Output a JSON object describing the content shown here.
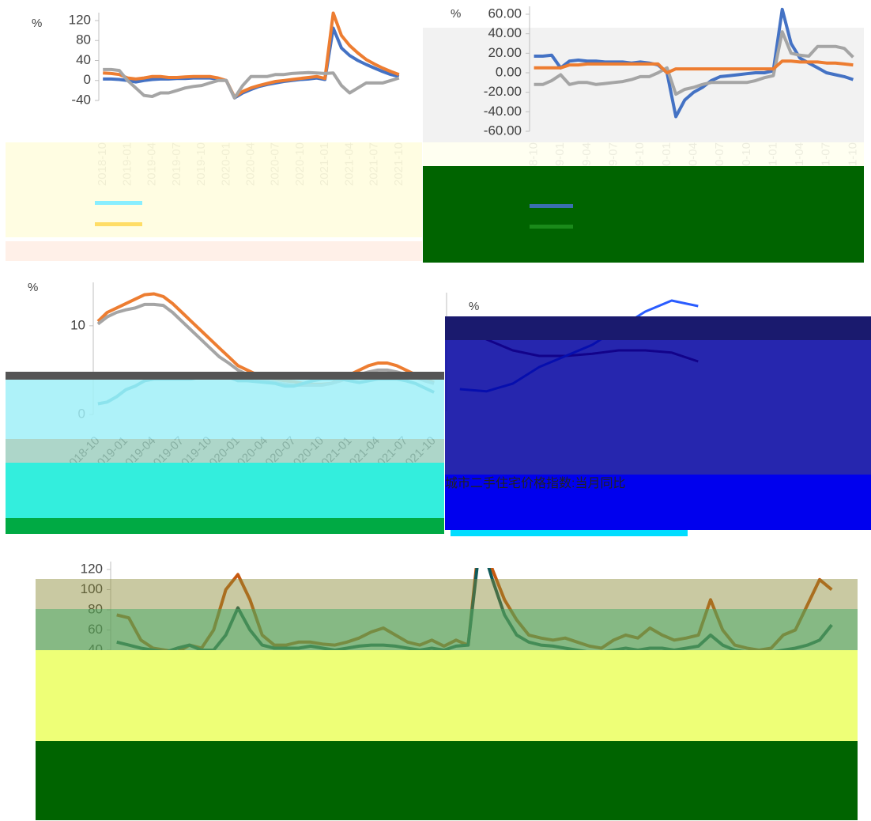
{
  "chart_data": [
    {
      "type": "line",
      "y_label": "%",
      "ylim": [
        -40,
        120
      ],
      "yticks": [
        -40,
        0,
        40,
        80,
        120
      ],
      "categories": [
        "2018-10",
        null,
        null,
        "2019-01",
        null,
        null,
        "2019-04",
        null,
        null,
        "2019-07",
        null,
        null,
        "2019-10",
        null,
        null,
        "2020-01",
        null,
        null,
        "2020-04",
        null,
        null,
        "2020-07",
        null,
        null,
        "2020-10",
        null,
        null,
        "2021-01",
        null,
        null,
        "2021-04",
        null,
        null,
        "2021-07",
        null,
        null,
        "2021-10"
      ],
      "series": [
        {
          "color": "#4472c4",
          "values": [
            3,
            3,
            2,
            0,
            -3,
            0,
            2,
            3,
            3,
            4,
            4,
            5,
            5,
            5,
            3,
            0,
            -35,
            -25,
            -18,
            -12,
            -8,
            -5,
            -2,
            0,
            2,
            3,
            5,
            2,
            105,
            65,
            50,
            40,
            32,
            25,
            18,
            12,
            8
          ]
        },
        {
          "color": "#ed7d31",
          "values": [
            15,
            14,
            12,
            5,
            3,
            5,
            8,
            8,
            6,
            6,
            7,
            8,
            8,
            8,
            5,
            0,
            -33,
            -22,
            -15,
            -10,
            -6,
            -2,
            0,
            2,
            4,
            6,
            8,
            4,
            135,
            90,
            70,
            55,
            42,
            33,
            25,
            18,
            12
          ]
        },
        {
          "color": "#a5a5a5",
          "values": [
            22,
            22,
            20,
            0,
            -15,
            -30,
            -32,
            -25,
            -25,
            -20,
            -15,
            -12,
            -10,
            -5,
            0,
            0,
            -35,
            -10,
            8,
            8,
            8,
            12,
            12,
            14,
            15,
            16,
            15,
            14,
            15,
            -10,
            -25,
            -15,
            -5,
            -5,
            -5,
            0,
            5
          ]
        }
      ]
    },
    {
      "type": "line",
      "y_label": "%",
      "ylim": [
        -60,
        60
      ],
      "yticks": [
        {
          "value": -60,
          "label": "-60.00"
        },
        {
          "value": -40,
          "label": "-40.00"
        },
        {
          "value": -20,
          "label": "-20.00"
        },
        {
          "value": 0,
          "label": "0.00"
        },
        {
          "value": 20,
          "label": "20.00"
        },
        {
          "value": 40,
          "label": "40.00"
        },
        {
          "value": 60,
          "label": "60.00"
        }
      ],
      "categories": [
        "2018-10",
        null,
        null,
        "2019-01",
        null,
        null,
        "2019-04",
        null,
        null,
        "2019-07",
        null,
        null,
        "2019-10",
        null,
        null,
        "2020-01",
        null,
        null,
        "2020-04",
        null,
        null,
        "2020-07",
        null,
        null,
        "2020-10",
        null,
        null,
        "2021-01",
        null,
        null,
        "2021-04",
        null,
        null,
        "2021-07",
        null,
        null,
        "2021-10"
      ],
      "series": [
        {
          "color": "#4472c4",
          "values": [
            17,
            17,
            18,
            5,
            12,
            13,
            12,
            12,
            11,
            11,
            11,
            10,
            11,
            10,
            8,
            0,
            -45,
            -28,
            -20,
            -15,
            -8,
            -4,
            -3,
            -2,
            -1,
            0,
            0,
            2,
            65,
            30,
            15,
            10,
            5,
            0,
            -2,
            -4,
            -7
          ]
        },
        {
          "color": "#a5a5a5",
          "values": [
            -12,
            -12,
            -8,
            -2,
            -12,
            -10,
            -10,
            -12,
            -11,
            -10,
            -9,
            -7,
            -4,
            -4,
            0,
            5,
            -22,
            -17,
            -15,
            -12,
            -10,
            -10,
            -10,
            -10,
            -10,
            -8,
            -5,
            -3,
            42,
            20,
            18,
            17,
            27,
            27,
            27,
            25,
            16
          ]
        },
        {
          "color": "#ed7d31",
          "values": [
            5,
            5,
            5,
            5,
            8,
            8,
            9,
            9,
            9,
            9,
            9,
            9,
            9,
            9,
            9,
            0,
            4,
            4,
            4,
            4,
            4,
            4,
            4,
            4,
            4,
            4,
            4,
            4,
            12,
            12,
            11,
            11,
            11,
            10,
            10,
            9,
            8
          ]
        }
      ]
    },
    {
      "type": "line",
      "y_label": "%",
      "ylim": [
        0,
        14
      ],
      "yticks": [
        0,
        10
      ],
      "categories": [
        "2018-10",
        null,
        null,
        "2019-01",
        null,
        null,
        "2019-04",
        null,
        null,
        "2019-07",
        null,
        null,
        "2019-10",
        null,
        null,
        "2020-01",
        null,
        null,
        "2020-04",
        null,
        null,
        "2020-07",
        null,
        null,
        "2020-10",
        null,
        null,
        "2021-01",
        null,
        null,
        "2021-04",
        null,
        null,
        "2021-07",
        null,
        null,
        "2021-10"
      ],
      "series": [
        {
          "color": "#ed7d31",
          "values": [
            10.5,
            11.5,
            12,
            12.5,
            13,
            13.5,
            13.6,
            13.3,
            12.5,
            11.5,
            10.5,
            9.5,
            8.5,
            7.5,
            6.5,
            5.5,
            5,
            4.5,
            4.2,
            4,
            3.8,
            3.7,
            3.5,
            3.4,
            3.4,
            3.5,
            4,
            4.5,
            5,
            5.5,
            5.8,
            5.8,
            5.5,
            5,
            4.5,
            4,
            3.6
          ]
        },
        {
          "color": "#a5a5a5",
          "values": [
            10.2,
            11,
            11.5,
            11.8,
            12,
            12.4,
            12.4,
            12.3,
            11.5,
            10.5,
            9.5,
            8.5,
            7.5,
            6.5,
            5.8,
            5,
            4.5,
            4,
            3.8,
            3.6,
            3.4,
            3.3,
            3.3,
            3.3,
            3.3,
            3.5,
            3.8,
            4.2,
            4.5,
            4.8,
            5,
            5,
            4.8,
            4.5,
            4.2,
            3.8,
            3.5
          ]
        },
        {
          "color": "#1f9bb0",
          "values": [
            1.2,
            1.4,
            2,
            2.8,
            3.2,
            3.8,
            4,
            4,
            4,
            4,
            4,
            4.2,
            4.4,
            4.5,
            4.2,
            3.8,
            3.8,
            3.7,
            3.6,
            3.5,
            3.2,
            3.2,
            3.5,
            3.8,
            4,
            4,
            4,
            3.8,
            3.6,
            3.8,
            4,
            4,
            4,
            3.8,
            3.5,
            3,
            2.5
          ]
        }
      ]
    },
    {
      "type": "line",
      "title": "城市二手住宅价格指数:当月同比",
      "y_label": "%",
      "ylim": [
        0,
        10
      ],
      "categories": [
        null,
        null,
        null,
        null,
        null,
        null,
        null,
        null,
        null,
        null
      ],
      "series": [
        {
          "color": "#7a1010",
          "values": [
            8,
            6.5,
            5.5,
            5,
            5,
            5.2,
            5.5,
            5.5,
            5.3,
            4.5
          ]
        },
        {
          "color": "#2a5cff",
          "values": [
            2,
            1.8,
            2.5,
            4,
            5,
            6,
            7.5,
            9,
            10,
            9.5
          ]
        }
      ]
    },
    {
      "type": "line",
      "ylim": [
        40,
        120
      ],
      "yticks": [
        40,
        60,
        80,
        100,
        120
      ],
      "categories": [
        null,
        null,
        null,
        null,
        null,
        null,
        null,
        null,
        null,
        null,
        null,
        null,
        null,
        null,
        null,
        null,
        null,
        null,
        null,
        null,
        null,
        null,
        null,
        null,
        null,
        null,
        null,
        null,
        null,
        null,
        null,
        null,
        null,
        null,
        null,
        null,
        null,
        null,
        null,
        null,
        null,
        null,
        null,
        null,
        null,
        null,
        null,
        null,
        null,
        null,
        null,
        null,
        null,
        null,
        null,
        null,
        null,
        null,
        null,
        null
      ],
      "series": [
        {
          "color": "#c65a11",
          "values": [
            75,
            72,
            50,
            42,
            40,
            38,
            45,
            42,
            60,
            100,
            115,
            90,
            55,
            45,
            45,
            48,
            48,
            46,
            45,
            48,
            52,
            58,
            62,
            55,
            48,
            45,
            50,
            44,
            50,
            45,
            160,
            120,
            90,
            70,
            55,
            52,
            50,
            52,
            48,
            44,
            42,
            50,
            55,
            52,
            62,
            55,
            50,
            52,
            55,
            90,
            60,
            45,
            42,
            40,
            42,
            55,
            60,
            85,
            110,
            100
          ]
        },
        {
          "color": "#0f5a5a",
          "values": [
            48,
            45,
            42,
            40,
            38,
            42,
            45,
            40,
            40,
            55,
            82,
            60,
            45,
            42,
            42,
            42,
            44,
            42,
            40,
            42,
            44,
            45,
            45,
            44,
            42,
            40,
            42,
            40,
            44,
            45,
            150,
            110,
            75,
            55,
            48,
            45,
            44,
            42,
            40,
            38,
            38,
            40,
            42,
            40,
            42,
            42,
            40,
            42,
            44,
            55,
            45,
            40,
            38,
            38,
            38,
            40,
            42,
            45,
            50,
            65
          ]
        }
      ]
    }
  ]
}
